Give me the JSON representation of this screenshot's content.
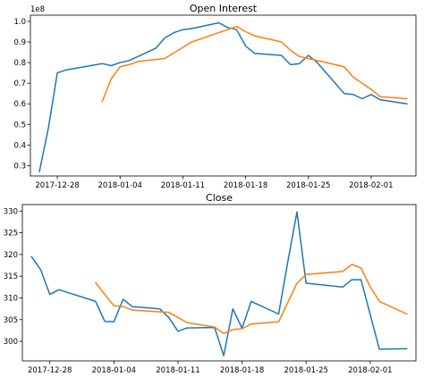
{
  "chart_data": [
    {
      "type": "line",
      "title": "Open Interest",
      "offset_label": "1e8",
      "xlabel": "",
      "ylabel": "",
      "x_ticks": [
        "2017-12-28",
        "2018-01-04",
        "2018-01-11",
        "2018-01-18",
        "2018-01-25",
        "2018-02-01"
      ],
      "y_ticks": [
        "0.3",
        "0.4",
        "0.5",
        "0.6",
        "0.7",
        "0.8",
        "0.9",
        "1.0"
      ],
      "xlim": [
        "2017-12-25",
        "2018-02-06"
      ],
      "ylim": [
        0.25,
        1.03
      ],
      "grid": false,
      "colors": [
        "#1f77b4",
        "#ff7f0e"
      ],
      "series": [
        {
          "x": [
            "2017-12-26",
            "2017-12-27",
            "2017-12-28",
            "2017-12-29",
            "2018-01-02",
            "2018-01-03",
            "2018-01-04",
            "2018-01-05",
            "2018-01-08",
            "2018-01-09",
            "2018-01-10",
            "2018-01-11",
            "2018-01-12",
            "2018-01-15",
            "2018-01-16",
            "2018-01-17",
            "2018-01-18",
            "2018-01-19",
            "2018-01-22",
            "2018-01-23",
            "2018-01-24",
            "2018-01-25",
            "2018-01-26",
            "2018-01-29",
            "2018-01-30",
            "2018-01-31",
            "2018-02-01",
            "2018-02-02",
            "2018-02-05"
          ],
          "values": [
            0.27,
            0.48,
            0.75,
            0.765,
            0.795,
            0.785,
            0.8,
            0.81,
            0.87,
            0.92,
            0.945,
            0.96,
            0.965,
            0.993,
            0.97,
            0.96,
            0.88,
            0.845,
            0.835,
            0.79,
            0.795,
            0.835,
            0.8,
            0.65,
            0.645,
            0.625,
            0.645,
            0.62,
            0.6
          ]
        },
        {
          "x": [
            "2018-01-02",
            "2018-01-03",
            "2018-01-04",
            "2018-01-05",
            "2018-01-06",
            "2018-01-09",
            "2018-01-12",
            "2018-01-15",
            "2018-01-16",
            "2018-01-17",
            "2018-01-18",
            "2018-01-19",
            "2018-01-22",
            "2018-01-23",
            "2018-01-24",
            "2018-01-25",
            "2018-01-29",
            "2018-01-30",
            "2018-02-01",
            "2018-02-02",
            "2018-02-05"
          ],
          "values": [
            0.61,
            0.72,
            0.78,
            0.79,
            0.805,
            0.82,
            0.9,
            0.945,
            0.96,
            0.975,
            0.95,
            0.93,
            0.9,
            0.86,
            0.83,
            0.82,
            0.78,
            0.73,
            0.67,
            0.635,
            0.625
          ]
        }
      ]
    },
    {
      "type": "line",
      "title": "Close",
      "xlabel": "",
      "ylabel": "",
      "x_ticks": [
        "2017-12-28",
        "2018-01-04",
        "2018-01-11",
        "2018-01-18",
        "2018-01-25",
        "2018-02-01"
      ],
      "y_ticks": [
        "300",
        "305",
        "310",
        "315",
        "320",
        "325",
        "330"
      ],
      "xlim": [
        "2017-12-25",
        "2018-02-06"
      ],
      "ylim": [
        295.5,
        331.5
      ],
      "grid": false,
      "colors": [
        "#1f77b4",
        "#ff7f0e"
      ],
      "series": [
        {
          "x": [
            "2017-12-26",
            "2017-12-27",
            "2017-12-28",
            "2017-12-29",
            "2018-01-02",
            "2018-01-03",
            "2018-01-04",
            "2018-01-05",
            "2018-01-06",
            "2018-01-09",
            "2018-01-10",
            "2018-01-11",
            "2018-01-12",
            "2018-01-15",
            "2018-01-16",
            "2018-01-17",
            "2018-01-18",
            "2018-01-19",
            "2018-01-22",
            "2018-01-23",
            "2018-01-24",
            "2018-01-25",
            "2018-01-29",
            "2018-01-30",
            "2018-01-31",
            "2018-02-02",
            "2018-02-05"
          ],
          "values": [
            319.5,
            316.5,
            310.8,
            311.9,
            309.2,
            304.6,
            304.5,
            309.7,
            308.0,
            307.5,
            305.5,
            302.3,
            303.1,
            303.2,
            296.7,
            307.5,
            303.0,
            309.2,
            306.3,
            318.3,
            329.8,
            313.4,
            312.5,
            314.2,
            314.2,
            298.2,
            298.3
          ]
        },
        {
          "x": [
            "2018-01-02",
            "2018-01-03",
            "2018-01-04",
            "2018-01-05",
            "2018-01-06",
            "2018-01-09",
            "2018-01-10",
            "2018-01-12",
            "2018-01-15",
            "2018-01-16",
            "2018-01-17",
            "2018-01-18",
            "2018-01-19",
            "2018-01-22",
            "2018-01-24",
            "2018-01-25",
            "2018-01-29",
            "2018-01-30",
            "2018-01-31",
            "2018-02-01",
            "2018-02-02",
            "2018-02-05"
          ],
          "values": [
            313.5,
            310.8,
            308.2,
            308.0,
            307.2,
            306.8,
            306.7,
            304.3,
            303.3,
            301.8,
            302.7,
            302.9,
            304.0,
            304.5,
            313.4,
            315.4,
            316.1,
            317.7,
            316.9,
            312.6,
            309.2,
            306.3
          ]
        }
      ]
    }
  ]
}
